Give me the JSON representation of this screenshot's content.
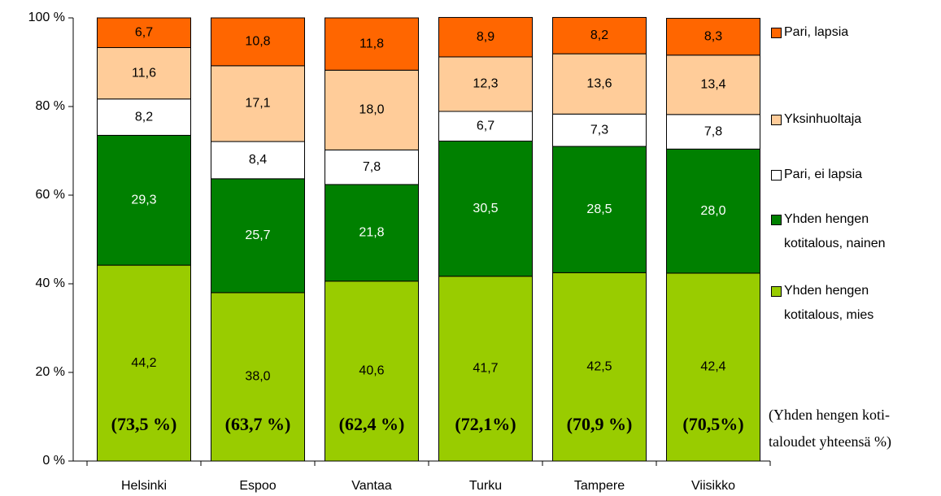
{
  "chart_data": {
    "type": "stacked_bar",
    "categories": [
      "Helsinki",
      "Espoo",
      "Vantaa",
      "Turku",
      "Tampere",
      "Viisikko"
    ],
    "series": [
      {
        "name": "Yhden hengen kotitalous, mies",
        "color": "#99cc00",
        "label_color": "#000000",
        "values": [
          44.2,
          38.0,
          40.6,
          41.7,
          42.5,
          42.4
        ],
        "value_labels": [
          "44,2",
          "38,0",
          "40,6",
          "41,7",
          "42,5",
          "42,4"
        ]
      },
      {
        "name": "Yhden hengen kotitalous, nainen",
        "color": "#008000",
        "label_color": "#ffffff",
        "values": [
          29.3,
          25.7,
          21.8,
          30.5,
          28.5,
          28.0
        ],
        "value_labels": [
          "29,3",
          "25,7",
          "21,8",
          "30,5",
          "28,5",
          "28,0"
        ]
      },
      {
        "name": "Pari, ei lapsia",
        "color": "#ffffff",
        "label_color": "#000000",
        "values": [
          8.2,
          8.4,
          7.8,
          6.7,
          7.3,
          7.8
        ],
        "value_labels": [
          "8,2",
          "8,4",
          "7,8",
          "6,7",
          "7,3",
          "7,8"
        ]
      },
      {
        "name": "Yksinhuoltaja",
        "color": "#ffcc99",
        "label_color": "#000000",
        "values": [
          11.6,
          17.1,
          18.0,
          12.3,
          13.6,
          13.4
        ],
        "value_labels": [
          "11,6",
          "17,1",
          "18,0",
          "12,3",
          "13,6",
          "13,4"
        ]
      },
      {
        "name": "Pari, lapsia",
        "color": "#ff6600",
        "label_color": "#000000",
        "values": [
          6.7,
          10.8,
          11.8,
          8.9,
          8.2,
          8.3
        ],
        "value_labels": [
          "6,7",
          "10,8",
          "11,8",
          "8,9",
          "8,2",
          "8,3"
        ]
      }
    ],
    "annotations": [
      "(73,5 %)",
      "(63,7 %)",
      "(62,4 %)",
      "(72,1%)",
      "(70,9 %)",
      "(70,5%)"
    ],
    "note_lines": [
      "(Yhden hengen koti-",
      "taloudet yhteensä %)"
    ],
    "ylim": [
      0,
      100
    ],
    "yticks": [
      {
        "value": 0,
        "label": "0 %"
      },
      {
        "value": 20,
        "label": "20 %"
      },
      {
        "value": 40,
        "label": "40 %"
      },
      {
        "value": 60,
        "label": "60 %"
      },
      {
        "value": 80,
        "label": "80 %"
      },
      {
        "value": 100,
        "label": "100 %"
      }
    ],
    "legend": "right"
  }
}
